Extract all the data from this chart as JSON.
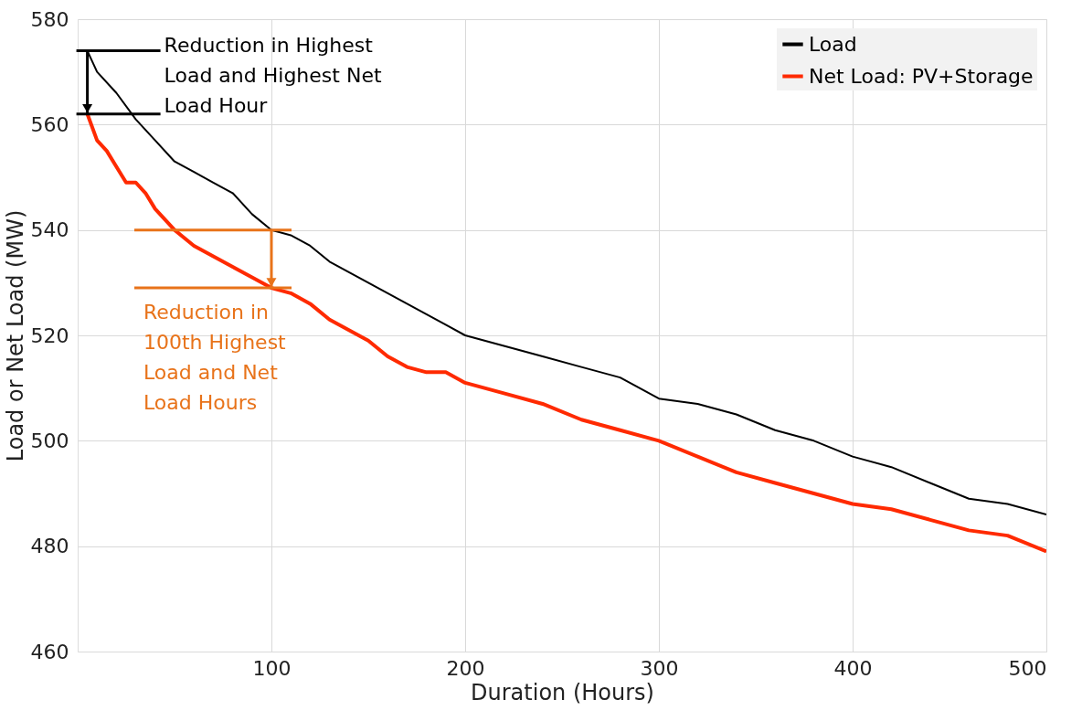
{
  "chart_data": {
    "type": "line",
    "xlabel": "Duration (Hours)",
    "ylabel": "Load or Net Load (MW)",
    "xlim": [
      0,
      500
    ],
    "xticks": [
      100,
      200,
      300,
      400,
      500
    ],
    "ylim": [
      460,
      580
    ],
    "yticks": [
      460,
      480,
      500,
      520,
      540,
      560,
      580
    ],
    "grid": true,
    "legend": "top right",
    "marker": "none",
    "line_style": "solid",
    "series": [
      {
        "name": "Load",
        "color": "#000000",
        "x": [
          5,
          10,
          20,
          30,
          40,
          50,
          60,
          70,
          80,
          90,
          100,
          110,
          120,
          130,
          140,
          150,
          160,
          170,
          180,
          190,
          200,
          220,
          240,
          260,
          280,
          300,
          320,
          340,
          360,
          380,
          400,
          420,
          440,
          460,
          480,
          500
        ],
        "values": [
          574,
          570,
          566,
          561,
          557,
          553,
          551,
          549,
          547,
          543,
          540,
          539,
          537,
          534,
          532,
          530,
          528,
          526,
          524,
          522,
          520,
          518,
          516,
          514,
          512,
          508,
          507,
          505,
          502,
          500,
          497,
          495,
          492,
          489,
          488,
          486
        ]
      },
      {
        "name": "Net Load: PV+Storage",
        "color": "#ff2a00",
        "x": [
          5,
          10,
          15,
          20,
          25,
          30,
          35,
          40,
          50,
          60,
          70,
          80,
          90,
          100,
          110,
          120,
          130,
          140,
          150,
          160,
          170,
          180,
          190,
          200,
          220,
          240,
          260,
          280,
          300,
          320,
          340,
          360,
          380,
          400,
          420,
          440,
          460,
          480,
          500
        ],
        "values": [
          562,
          557,
          555,
          552,
          549,
          549,
          547,
          544,
          540,
          537,
          535,
          533,
          531,
          529,
          528,
          526,
          523,
          521,
          519,
          516,
          514,
          513,
          513,
          511,
          509,
          507,
          504,
          502,
          500,
          497,
          494,
          492,
          490,
          488,
          487,
          485,
          483,
          482,
          479
        ]
      }
    ],
    "ref_lines": [
      {
        "axis": "y",
        "value": 574,
        "color": "#000000"
      },
      {
        "axis": "y",
        "value": 562,
        "color": "#000000"
      },
      {
        "axis": "y",
        "value": 540,
        "color": "#e8731a"
      },
      {
        "axis": "y",
        "value": 529,
        "color": "#e8731a"
      }
    ],
    "annotations": [
      "Reduction in Highest Load and Highest Net Load Hour",
      {
        "text": "Reduction in 100th Highest Load and Net Load Hours",
        "x": 100,
        "y": 540
      }
    ]
  }
}
